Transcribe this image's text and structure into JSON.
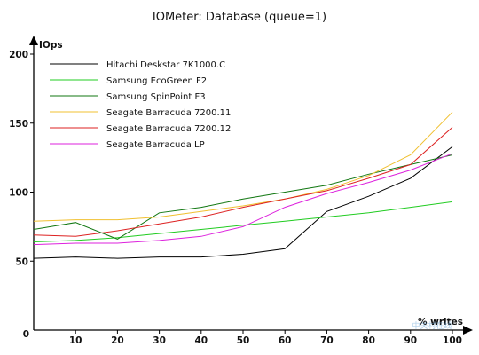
{
  "chart_data": {
    "type": "line",
    "title": "IOMeter: Database (queue=1)",
    "ylabel": "IOps",
    "xlabel": "% writes",
    "x": [
      0,
      10,
      20,
      30,
      40,
      50,
      60,
      70,
      80,
      90,
      100
    ],
    "x_ticks": [
      0,
      10,
      20,
      30,
      40,
      50,
      60,
      70,
      80,
      90,
      100
    ],
    "y_ticks": [
      0,
      50,
      100,
      150,
      200
    ],
    "xlim": [
      0,
      100
    ],
    "ylim": [
      0,
      200
    ],
    "grid": false,
    "legend_position": "top-left",
    "series": [
      {
        "name": "Hitachi Deskstar 7K1000.C",
        "color": "#000000",
        "values": [
          52,
          53,
          52,
          53,
          53,
          55,
          59,
          86,
          97,
          110,
          133
        ]
      },
      {
        "name": "Samsung EcoGreen F2",
        "color": "#22cc22",
        "values": [
          64,
          65,
          67,
          70,
          73,
          76,
          79,
          82,
          85,
          89,
          93
        ]
      },
      {
        "name": "Samsung SpinPoint F3",
        "color": "#117711",
        "values": [
          73,
          78,
          66,
          85,
          89,
          95,
          100,
          105,
          113,
          120,
          127
        ]
      },
      {
        "name": "Seagate Barracuda 7200.11",
        "color": "#f0c030",
        "values": [
          79,
          80,
          80,
          82,
          86,
          90,
          95,
          102,
          112,
          127,
          158
        ]
      },
      {
        "name": "Seagate Barracuda 7200.12",
        "color": "#dd2222",
        "values": [
          69,
          68,
          72,
          77,
          82,
          89,
          95,
          101,
          110,
          120,
          147
        ]
      },
      {
        "name": "Seagate Barracuda LP",
        "color": "#dd22dd",
        "values": [
          62,
          63,
          63,
          65,
          68,
          75,
          89,
          99,
          107,
          116,
          128
        ]
      }
    ]
  },
  "watermark": "中关村在线"
}
